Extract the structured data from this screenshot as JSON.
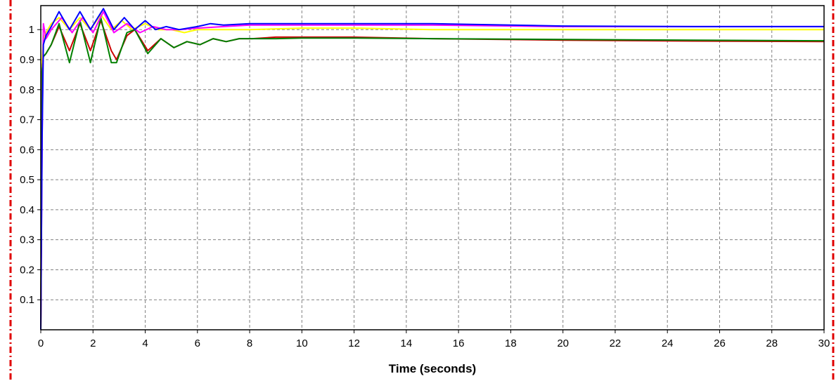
{
  "chart_data": {
    "type": "line",
    "title": "",
    "xlabel": "Time (seconds)",
    "ylabel": "",
    "xlim": [
      0,
      30
    ],
    "ylim": [
      0,
      1.08
    ],
    "grid": true,
    "legend": "none",
    "x_ticks": [
      "0",
      "2",
      "4",
      "6",
      "8",
      "10",
      "12",
      "14",
      "16",
      "18",
      "20",
      "22",
      "24",
      "26",
      "28",
      "30"
    ],
    "y_ticks": [
      "0.1",
      "0.2",
      "0.3",
      "0.4",
      "0.5",
      "0.6",
      "0.7",
      "0.8",
      "0.9",
      "1"
    ],
    "x_tick_values": [
      0,
      2,
      4,
      6,
      8,
      10,
      12,
      14,
      16,
      18,
      20,
      22,
      24,
      26,
      28,
      30
    ],
    "y_tick_values": [
      0.1,
      0.2,
      0.3,
      0.4,
      0.5,
      0.6,
      0.7,
      0.8,
      0.9,
      1.0
    ],
    "series": [
      {
        "color": "#ffff00",
        "x": [
          0,
          0.05,
          0.1,
          0.2,
          0.4,
          0.7,
          1.1,
          1.5,
          1.9,
          2.3,
          2.7,
          3.1,
          3.5,
          4,
          4.5,
          5,
          5.5,
          6,
          7,
          8,
          10,
          12,
          15,
          20,
          25,
          30
        ],
        "y": [
          0,
          0.9,
          0.97,
          0.99,
          1.02,
          1.04,
          1.0,
          1.04,
          1.0,
          1.05,
          1.0,
          1.03,
          1.0,
          1.02,
          1.0,
          1.0,
          0.99,
          1.0,
          1.0,
          1.0,
          1.005,
          1.005,
          1.0,
          1.0,
          1.0,
          1.0
        ]
      },
      {
        "color": "#cc0000",
        "x": [
          0,
          0.05,
          0.1,
          0.2,
          0.4,
          0.7,
          1.1,
          1.5,
          1.9,
          2.3,
          2.7,
          2.9,
          3.3,
          3.6,
          4.1,
          4.6,
          5.1,
          5.6,
          6.1,
          6.6,
          7.1,
          7.6,
          8.1,
          9,
          10,
          12,
          15,
          20,
          25,
          30
        ],
        "y": [
          0,
          0.86,
          0.91,
          0.92,
          0.95,
          1.01,
          0.93,
          1.02,
          0.93,
          1.03,
          0.93,
          0.9,
          0.98,
          1.0,
          0.93,
          0.97,
          0.94,
          0.96,
          0.95,
          0.97,
          0.96,
          0.97,
          0.97,
          0.975,
          0.975,
          0.975,
          0.97,
          0.965,
          0.962,
          0.96
        ]
      },
      {
        "color": "#008000",
        "x": [
          0,
          0.05,
          0.1,
          0.2,
          0.4,
          0.7,
          1.1,
          1.5,
          1.9,
          2.3,
          2.7,
          2.9,
          3.3,
          3.6,
          4.1,
          4.6,
          5.1,
          5.6,
          6.1,
          6.6,
          7.1,
          7.6,
          8.1,
          9,
          10,
          12,
          15,
          20,
          25,
          30
        ],
        "y": [
          0,
          0.86,
          0.91,
          0.92,
          0.95,
          1.02,
          0.89,
          1.03,
          0.89,
          1.04,
          0.89,
          0.89,
          0.99,
          1.0,
          0.92,
          0.97,
          0.94,
          0.96,
          0.95,
          0.97,
          0.96,
          0.97,
          0.97,
          0.97,
          0.972,
          0.972,
          0.97,
          0.967,
          0.965,
          0.963
        ]
      },
      {
        "color": "#ff00ff",
        "x": [
          0,
          0.05,
          0.1,
          0.2,
          0.4,
          0.8,
          1.2,
          1.6,
          2.0,
          2.4,
          2.8,
          3.3,
          3.8,
          4.3,
          4.8,
          5.3,
          6,
          7,
          8,
          10,
          12,
          15,
          20,
          25,
          30
        ],
        "y": [
          0,
          0.63,
          1.02,
          0.97,
          1.0,
          1.04,
          0.99,
          1.04,
          0.99,
          1.06,
          0.99,
          1.02,
          0.99,
          1.01,
          1.0,
          1.0,
          1.005,
          1.01,
          1.015,
          1.015,
          1.015,
          1.015,
          1.01,
          1.01,
          1.01
        ]
      },
      {
        "color": "#0000ff",
        "x": [
          0,
          0.05,
          0.1,
          0.2,
          0.4,
          0.7,
          1.1,
          1.5,
          1.9,
          2.4,
          2.8,
          3.2,
          3.6,
          4.0,
          4.4,
          4.8,
          5.3,
          6,
          6.5,
          7,
          8,
          10,
          12,
          15,
          20,
          25,
          30
        ],
        "y": [
          0,
          0.64,
          0.95,
          0.98,
          1.01,
          1.06,
          1.0,
          1.06,
          1.0,
          1.07,
          1.0,
          1.04,
          1.0,
          1.03,
          1.0,
          1.01,
          1.0,
          1.01,
          1.02,
          1.015,
          1.02,
          1.02,
          1.02,
          1.02,
          1.012,
          1.01,
          1.01
        ]
      }
    ]
  }
}
